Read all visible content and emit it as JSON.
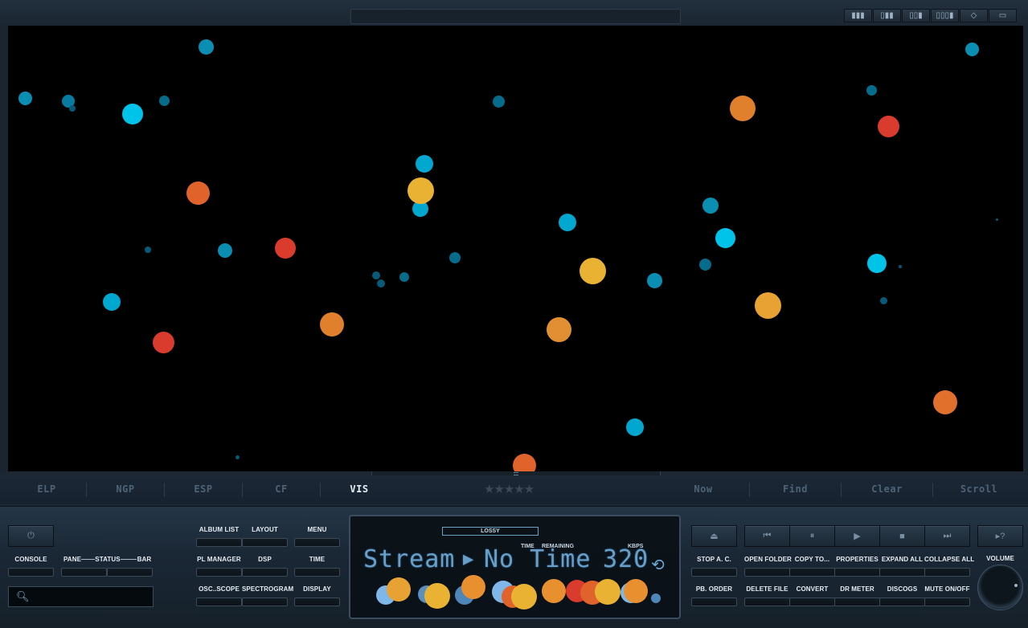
{
  "top": {
    "layout_buttons": [
      "layout-4col-icon",
      "layout-3col-icon",
      "layout-2col-icon",
      "layout-1col-icon",
      "move-icon",
      "window-icon"
    ]
  },
  "visualizer": {
    "colors": {
      "teal": "#0a8fb3",
      "cyan": "#00c3ea",
      "orange": "#e07f2c",
      "red": "#d93b2c",
      "yellow": "#eab233"
    }
  },
  "tabs": {
    "left": [
      "ELP",
      "NGP",
      "ESP",
      "CF",
      "VIS"
    ],
    "active": "VIS",
    "right": [
      "Now",
      "Find",
      "Clear",
      "Scroll"
    ]
  },
  "rating": {
    "stars": "★★★★★",
    "value": 0
  },
  "controls": {
    "console": "CONSOLE",
    "pane": "PANE",
    "status": "STATUS",
    "bar": "BAR",
    "album_list": "ALBUM LIST",
    "layout": "LAYOUT",
    "menu": "MENU",
    "pl_manager": "PL MANAGER",
    "dsp": "DSP",
    "time": "TIME",
    "osc_scope": "OSC..SCOPE",
    "spectrogram": "SPECTROGRAM",
    "display": "DISPLAY",
    "stop_ac": "STOP A. C.",
    "open_folder": "OPEN FOLDER",
    "copy_to": "COPY TO...",
    "properties": "PROPERTIES",
    "expand_all": "EXPAND ALL",
    "collapse_all": "COLLAPSE ALL",
    "pb_order": "PB. ORDER",
    "delete_file": "DELETE FILE",
    "convert": "CONVERT",
    "dr_meter": "DR METER",
    "discogs": "DISCOGS",
    "mute": "MUTE ON/OFF",
    "volume": "VOLUME",
    "help": "▸?"
  },
  "display": {
    "lossy": "LOSSY",
    "time_label": "TIME",
    "remaining_label": "REMAINING",
    "kbps_label": "KBPS",
    "source": "Stream",
    "play_glyph": "▶",
    "time_text": "No Time",
    "kbps": "320"
  }
}
